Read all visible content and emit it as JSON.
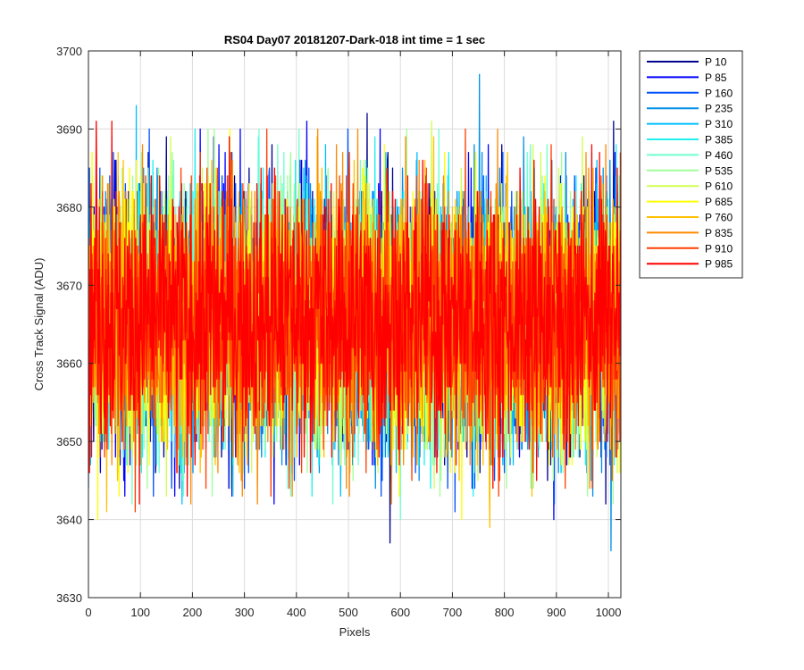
{
  "chart_data": {
    "type": "line",
    "title": "RS04 Day07 20181207-Dark-018 int time = 1 sec",
    "xlabel": "Pixels",
    "ylabel": "Cross Track Signal (ADU)",
    "xlim": [
      0,
      1024
    ],
    "ylim": [
      3630,
      3700
    ],
    "xticks": [
      0,
      100,
      200,
      300,
      400,
      500,
      600,
      700,
      800,
      900,
      1000
    ],
    "yticks": [
      3630,
      3640,
      3650,
      3660,
      3670,
      3680,
      3690,
      3700
    ],
    "grid": true,
    "legend_position": "outside-top-right",
    "series_summary": {
      "n_points": 1024,
      "mean": 3666,
      "typical_range": [
        3650,
        3682
      ],
      "noise": "random dark-frame signal"
    },
    "series": [
      {
        "name": "P 10",
        "color": "#00008f",
        "spikes": [
          [
            580,
            3637
          ],
          [
            536,
            3692
          ],
          [
            1010,
            3691
          ]
        ]
      },
      {
        "name": "P 85",
        "color": "#0000ff",
        "spikes": [
          [
            420,
            3691
          ],
          [
            895,
            3640
          ]
        ]
      },
      {
        "name": "P 160",
        "color": "#0050ff",
        "spikes": [
          [
            705,
            3641
          ],
          [
            300,
            3644
          ]
        ]
      },
      {
        "name": "P 235",
        "color": "#0090e8",
        "spikes": [
          [
            1005,
            3636
          ],
          [
            752,
            3697
          ]
        ]
      },
      {
        "name": "P 310",
        "color": "#00bfff",
        "spikes": [
          [
            92,
            3693
          ],
          [
            180,
            3642
          ]
        ]
      },
      {
        "name": "P 385",
        "color": "#20f0f0",
        "spikes": [
          [
            205,
            3690
          ],
          [
            430,
            3643
          ]
        ]
      },
      {
        "name": "P 460",
        "color": "#70ffd0",
        "spikes": [
          [
            600,
            3640
          ],
          [
            850,
            3688
          ]
        ]
      },
      {
        "name": "P 535",
        "color": "#a0ff98",
        "spikes": [
          [
            242,
            3690
          ],
          [
            960,
            3643
          ]
        ]
      },
      {
        "name": "P 610",
        "color": "#d0ff50",
        "spikes": [
          [
            150,
            3643
          ],
          [
            660,
            3691
          ]
        ]
      },
      {
        "name": "P 685",
        "color": "#ffff00",
        "spikes": [
          [
            272,
            3690
          ],
          [
            18,
            3640
          ],
          [
            718,
            3640
          ]
        ]
      },
      {
        "name": "P 760",
        "color": "#ffc000",
        "spikes": [
          [
            772,
            3639
          ],
          [
            35,
            3641
          ]
        ]
      },
      {
        "name": "P 835",
        "color": "#ff8a00",
        "spikes": [
          [
            325,
            3642
          ],
          [
            610,
            3689
          ]
        ]
      },
      {
        "name": "P 910",
        "color": "#ff4000",
        "spikes": [
          [
            90,
            3641
          ],
          [
            890,
            3688
          ]
        ]
      },
      {
        "name": "P 985",
        "color": "#ff0000",
        "spikes": [
          [
            15,
            3691
          ],
          [
            45,
            3691
          ],
          [
            190,
            3643
          ]
        ]
      }
    ]
  }
}
